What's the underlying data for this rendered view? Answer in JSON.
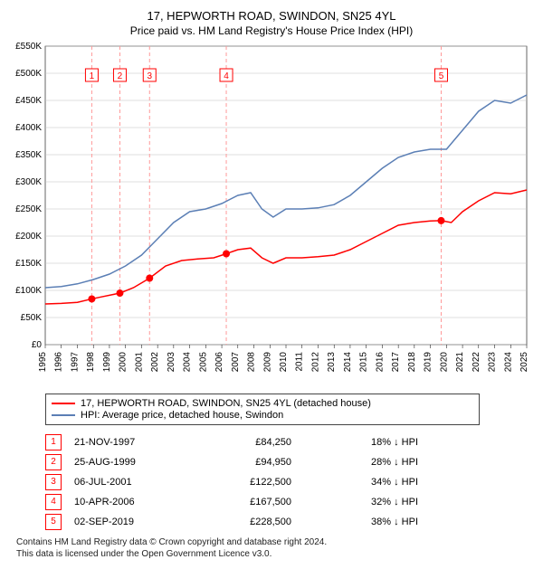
{
  "title_line1": "17, HEPWORTH ROAD, SWINDON, SN25 4YL",
  "title_line2": "Price paid vs. HM Land Registry's House Price Index (HPI)",
  "chart": {
    "type": "line",
    "background_color": "#ffffff",
    "grid_color": "#bfbfbf",
    "xlim": [
      1995,
      2025
    ],
    "ylim": [
      0,
      550000
    ],
    "y_ticks": [
      0,
      50000,
      100000,
      150000,
      200000,
      250000,
      300000,
      350000,
      400000,
      450000,
      500000,
      550000
    ],
    "y_tick_labels": [
      "£0",
      "£50K",
      "£100K",
      "£150K",
      "£200K",
      "£250K",
      "£300K",
      "£350K",
      "£400K",
      "£450K",
      "£500K",
      "£550K"
    ],
    "x_ticks": [
      1995,
      1996,
      1997,
      1998,
      1999,
      2000,
      2001,
      2002,
      2003,
      2004,
      2005,
      2006,
      2007,
      2008,
      2009,
      2010,
      2011,
      2012,
      2013,
      2014,
      2015,
      2016,
      2017,
      2018,
      2019,
      2020,
      2021,
      2022,
      2023,
      2024,
      2025
    ],
    "label_fontsize": 10,
    "line_width": 1.5,
    "series": [
      {
        "id": "property",
        "color": "#ff0000",
        "points": [
          [
            1995.0,
            75000
          ],
          [
            1996.0,
            76000
          ],
          [
            1997.0,
            78000
          ],
          [
            1997.9,
            84250
          ],
          [
            1998.5,
            88000
          ],
          [
            1999.65,
            94950
          ],
          [
            2000.5,
            105000
          ],
          [
            2001.5,
            122500
          ],
          [
            2002.5,
            145000
          ],
          [
            2003.5,
            155000
          ],
          [
            2004.5,
            158000
          ],
          [
            2005.5,
            160000
          ],
          [
            2006.28,
            167500
          ],
          [
            2007.0,
            175000
          ],
          [
            2007.8,
            178000
          ],
          [
            2008.5,
            160000
          ],
          [
            2009.2,
            150000
          ],
          [
            2010.0,
            160000
          ],
          [
            2011.0,
            160000
          ],
          [
            2012.0,
            162000
          ],
          [
            2013.0,
            165000
          ],
          [
            2014.0,
            175000
          ],
          [
            2015.0,
            190000
          ],
          [
            2016.0,
            205000
          ],
          [
            2017.0,
            220000
          ],
          [
            2018.0,
            225000
          ],
          [
            2019.0,
            228000
          ],
          [
            2019.67,
            228500
          ],
          [
            2020.3,
            225000
          ],
          [
            2021.0,
            245000
          ],
          [
            2022.0,
            265000
          ],
          [
            2023.0,
            280000
          ],
          [
            2024.0,
            278000
          ],
          [
            2025.0,
            285000
          ]
        ]
      },
      {
        "id": "hpi",
        "color": "#5b7fb5",
        "points": [
          [
            1995.0,
            105000
          ],
          [
            1996.0,
            107000
          ],
          [
            1997.0,
            112000
          ],
          [
            1998.0,
            120000
          ],
          [
            1999.0,
            130000
          ],
          [
            2000.0,
            145000
          ],
          [
            2001.0,
            165000
          ],
          [
            2002.0,
            195000
          ],
          [
            2003.0,
            225000
          ],
          [
            2004.0,
            245000
          ],
          [
            2005.0,
            250000
          ],
          [
            2006.0,
            260000
          ],
          [
            2007.0,
            275000
          ],
          [
            2007.8,
            280000
          ],
          [
            2008.5,
            250000
          ],
          [
            2009.2,
            235000
          ],
          [
            2010.0,
            250000
          ],
          [
            2011.0,
            250000
          ],
          [
            2012.0,
            252000
          ],
          [
            2013.0,
            258000
          ],
          [
            2014.0,
            275000
          ],
          [
            2015.0,
            300000
          ],
          [
            2016.0,
            325000
          ],
          [
            2017.0,
            345000
          ],
          [
            2018.0,
            355000
          ],
          [
            2019.0,
            360000
          ],
          [
            2020.0,
            360000
          ],
          [
            2021.0,
            395000
          ],
          [
            2022.0,
            430000
          ],
          [
            2023.0,
            450000
          ],
          [
            2024.0,
            445000
          ],
          [
            2025.0,
            460000
          ]
        ]
      }
    ],
    "sale_markers": {
      "color": "#ff0000",
      "vline_dash": "4,3",
      "vline_color": "#ff9999",
      "radius": 4,
      "box_border": "#ff0000",
      "box_fill": "#ffffff",
      "box_text_color": "#ff0000",
      "items": [
        {
          "n": "1",
          "x": 1997.9,
          "y": 84250,
          "label_y": 495000
        },
        {
          "n": "2",
          "x": 1999.65,
          "y": 94950,
          "label_y": 495000
        },
        {
          "n": "3",
          "x": 2001.5,
          "y": 122500,
          "label_y": 495000
        },
        {
          "n": "4",
          "x": 2006.28,
          "y": 167500,
          "label_y": 495000
        },
        {
          "n": "5",
          "x": 2019.67,
          "y": 228500,
          "label_y": 495000
        }
      ]
    }
  },
  "legend": {
    "items": [
      {
        "color": "#ff0000",
        "label": "17, HEPWORTH ROAD, SWINDON, SN25 4YL (detached house)"
      },
      {
        "color": "#5b7fb5",
        "label": "HPI: Average price, detached house, Swindon"
      }
    ]
  },
  "sales_table": {
    "rows": [
      {
        "n": "1",
        "date": "21-NOV-1997",
        "price": "£84,250",
        "diff": "18% ↓ HPI"
      },
      {
        "n": "2",
        "date": "25-AUG-1999",
        "price": "£94,950",
        "diff": "28% ↓ HPI"
      },
      {
        "n": "3",
        "date": "06-JUL-2001",
        "price": "£122,500",
        "diff": "34% ↓ HPI"
      },
      {
        "n": "4",
        "date": "10-APR-2006",
        "price": "£167,500",
        "diff": "32% ↓ HPI"
      },
      {
        "n": "5",
        "date": "02-SEP-2019",
        "price": "£228,500",
        "diff": "38% ↓ HPI"
      }
    ]
  },
  "footer_line1": "Contains HM Land Registry data © Crown copyright and database right 2024.",
  "footer_line2": "This data is licensed under the Open Government Licence v3.0."
}
